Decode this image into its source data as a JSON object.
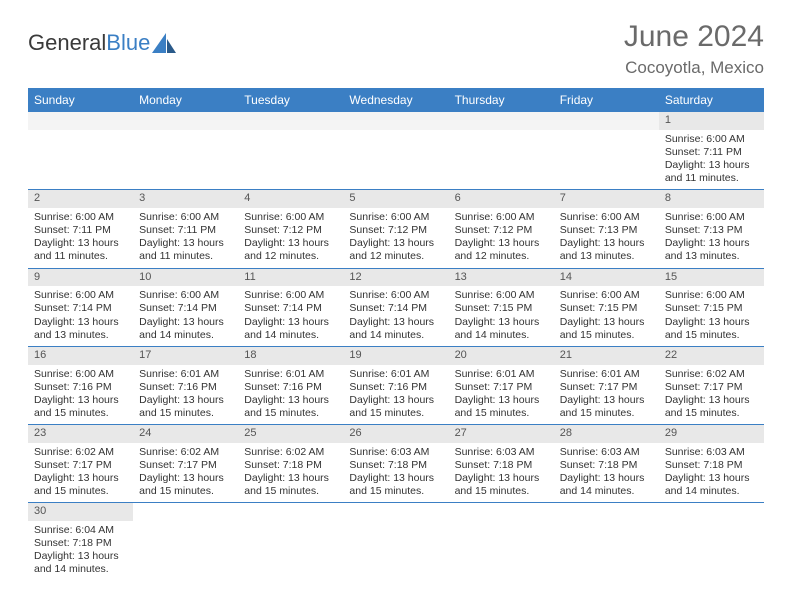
{
  "brand": {
    "part1": "General",
    "part2": "Blue"
  },
  "title": "June 2024",
  "location": "Cocoyotla, Mexico",
  "colors": {
    "header_bg": "#3b7fc4",
    "header_text": "#ffffff",
    "daynum_bg": "#e8e8e8",
    "border": "#3b7fc4"
  },
  "weekdays": [
    "Sunday",
    "Monday",
    "Tuesday",
    "Wednesday",
    "Thursday",
    "Friday",
    "Saturday"
  ],
  "weeks": [
    [
      null,
      null,
      null,
      null,
      null,
      null,
      {
        "n": "1",
        "sr": "Sunrise: 6:00 AM",
        "ss": "Sunset: 7:11 PM",
        "d1": "Daylight: 13 hours",
        "d2": "and 11 minutes."
      }
    ],
    [
      {
        "n": "2",
        "sr": "Sunrise: 6:00 AM",
        "ss": "Sunset: 7:11 PM",
        "d1": "Daylight: 13 hours",
        "d2": "and 11 minutes."
      },
      {
        "n": "3",
        "sr": "Sunrise: 6:00 AM",
        "ss": "Sunset: 7:11 PM",
        "d1": "Daylight: 13 hours",
        "d2": "and 11 minutes."
      },
      {
        "n": "4",
        "sr": "Sunrise: 6:00 AM",
        "ss": "Sunset: 7:12 PM",
        "d1": "Daylight: 13 hours",
        "d2": "and 12 minutes."
      },
      {
        "n": "5",
        "sr": "Sunrise: 6:00 AM",
        "ss": "Sunset: 7:12 PM",
        "d1": "Daylight: 13 hours",
        "d2": "and 12 minutes."
      },
      {
        "n": "6",
        "sr": "Sunrise: 6:00 AM",
        "ss": "Sunset: 7:12 PM",
        "d1": "Daylight: 13 hours",
        "d2": "and 12 minutes."
      },
      {
        "n": "7",
        "sr": "Sunrise: 6:00 AM",
        "ss": "Sunset: 7:13 PM",
        "d1": "Daylight: 13 hours",
        "d2": "and 13 minutes."
      },
      {
        "n": "8",
        "sr": "Sunrise: 6:00 AM",
        "ss": "Sunset: 7:13 PM",
        "d1": "Daylight: 13 hours",
        "d2": "and 13 minutes."
      }
    ],
    [
      {
        "n": "9",
        "sr": "Sunrise: 6:00 AM",
        "ss": "Sunset: 7:14 PM",
        "d1": "Daylight: 13 hours",
        "d2": "and 13 minutes."
      },
      {
        "n": "10",
        "sr": "Sunrise: 6:00 AM",
        "ss": "Sunset: 7:14 PM",
        "d1": "Daylight: 13 hours",
        "d2": "and 14 minutes."
      },
      {
        "n": "11",
        "sr": "Sunrise: 6:00 AM",
        "ss": "Sunset: 7:14 PM",
        "d1": "Daylight: 13 hours",
        "d2": "and 14 minutes."
      },
      {
        "n": "12",
        "sr": "Sunrise: 6:00 AM",
        "ss": "Sunset: 7:14 PM",
        "d1": "Daylight: 13 hours",
        "d2": "and 14 minutes."
      },
      {
        "n": "13",
        "sr": "Sunrise: 6:00 AM",
        "ss": "Sunset: 7:15 PM",
        "d1": "Daylight: 13 hours",
        "d2": "and 14 minutes."
      },
      {
        "n": "14",
        "sr": "Sunrise: 6:00 AM",
        "ss": "Sunset: 7:15 PM",
        "d1": "Daylight: 13 hours",
        "d2": "and 15 minutes."
      },
      {
        "n": "15",
        "sr": "Sunrise: 6:00 AM",
        "ss": "Sunset: 7:15 PM",
        "d1": "Daylight: 13 hours",
        "d2": "and 15 minutes."
      }
    ],
    [
      {
        "n": "16",
        "sr": "Sunrise: 6:00 AM",
        "ss": "Sunset: 7:16 PM",
        "d1": "Daylight: 13 hours",
        "d2": "and 15 minutes."
      },
      {
        "n": "17",
        "sr": "Sunrise: 6:01 AM",
        "ss": "Sunset: 7:16 PM",
        "d1": "Daylight: 13 hours",
        "d2": "and 15 minutes."
      },
      {
        "n": "18",
        "sr": "Sunrise: 6:01 AM",
        "ss": "Sunset: 7:16 PM",
        "d1": "Daylight: 13 hours",
        "d2": "and 15 minutes."
      },
      {
        "n": "19",
        "sr": "Sunrise: 6:01 AM",
        "ss": "Sunset: 7:16 PM",
        "d1": "Daylight: 13 hours",
        "d2": "and 15 minutes."
      },
      {
        "n": "20",
        "sr": "Sunrise: 6:01 AM",
        "ss": "Sunset: 7:17 PM",
        "d1": "Daylight: 13 hours",
        "d2": "and 15 minutes."
      },
      {
        "n": "21",
        "sr": "Sunrise: 6:01 AM",
        "ss": "Sunset: 7:17 PM",
        "d1": "Daylight: 13 hours",
        "d2": "and 15 minutes."
      },
      {
        "n": "22",
        "sr": "Sunrise: 6:02 AM",
        "ss": "Sunset: 7:17 PM",
        "d1": "Daylight: 13 hours",
        "d2": "and 15 minutes."
      }
    ],
    [
      {
        "n": "23",
        "sr": "Sunrise: 6:02 AM",
        "ss": "Sunset: 7:17 PM",
        "d1": "Daylight: 13 hours",
        "d2": "and 15 minutes."
      },
      {
        "n": "24",
        "sr": "Sunrise: 6:02 AM",
        "ss": "Sunset: 7:17 PM",
        "d1": "Daylight: 13 hours",
        "d2": "and 15 minutes."
      },
      {
        "n": "25",
        "sr": "Sunrise: 6:02 AM",
        "ss": "Sunset: 7:18 PM",
        "d1": "Daylight: 13 hours",
        "d2": "and 15 minutes."
      },
      {
        "n": "26",
        "sr": "Sunrise: 6:03 AM",
        "ss": "Sunset: 7:18 PM",
        "d1": "Daylight: 13 hours",
        "d2": "and 15 minutes."
      },
      {
        "n": "27",
        "sr": "Sunrise: 6:03 AM",
        "ss": "Sunset: 7:18 PM",
        "d1": "Daylight: 13 hours",
        "d2": "and 15 minutes."
      },
      {
        "n": "28",
        "sr": "Sunrise: 6:03 AM",
        "ss": "Sunset: 7:18 PM",
        "d1": "Daylight: 13 hours",
        "d2": "and 14 minutes."
      },
      {
        "n": "29",
        "sr": "Sunrise: 6:03 AM",
        "ss": "Sunset: 7:18 PM",
        "d1": "Daylight: 13 hours",
        "d2": "and 14 minutes."
      }
    ],
    [
      {
        "n": "30",
        "sr": "Sunrise: 6:04 AM",
        "ss": "Sunset: 7:18 PM",
        "d1": "Daylight: 13 hours",
        "d2": "and 14 minutes."
      },
      null,
      null,
      null,
      null,
      null,
      null
    ]
  ]
}
